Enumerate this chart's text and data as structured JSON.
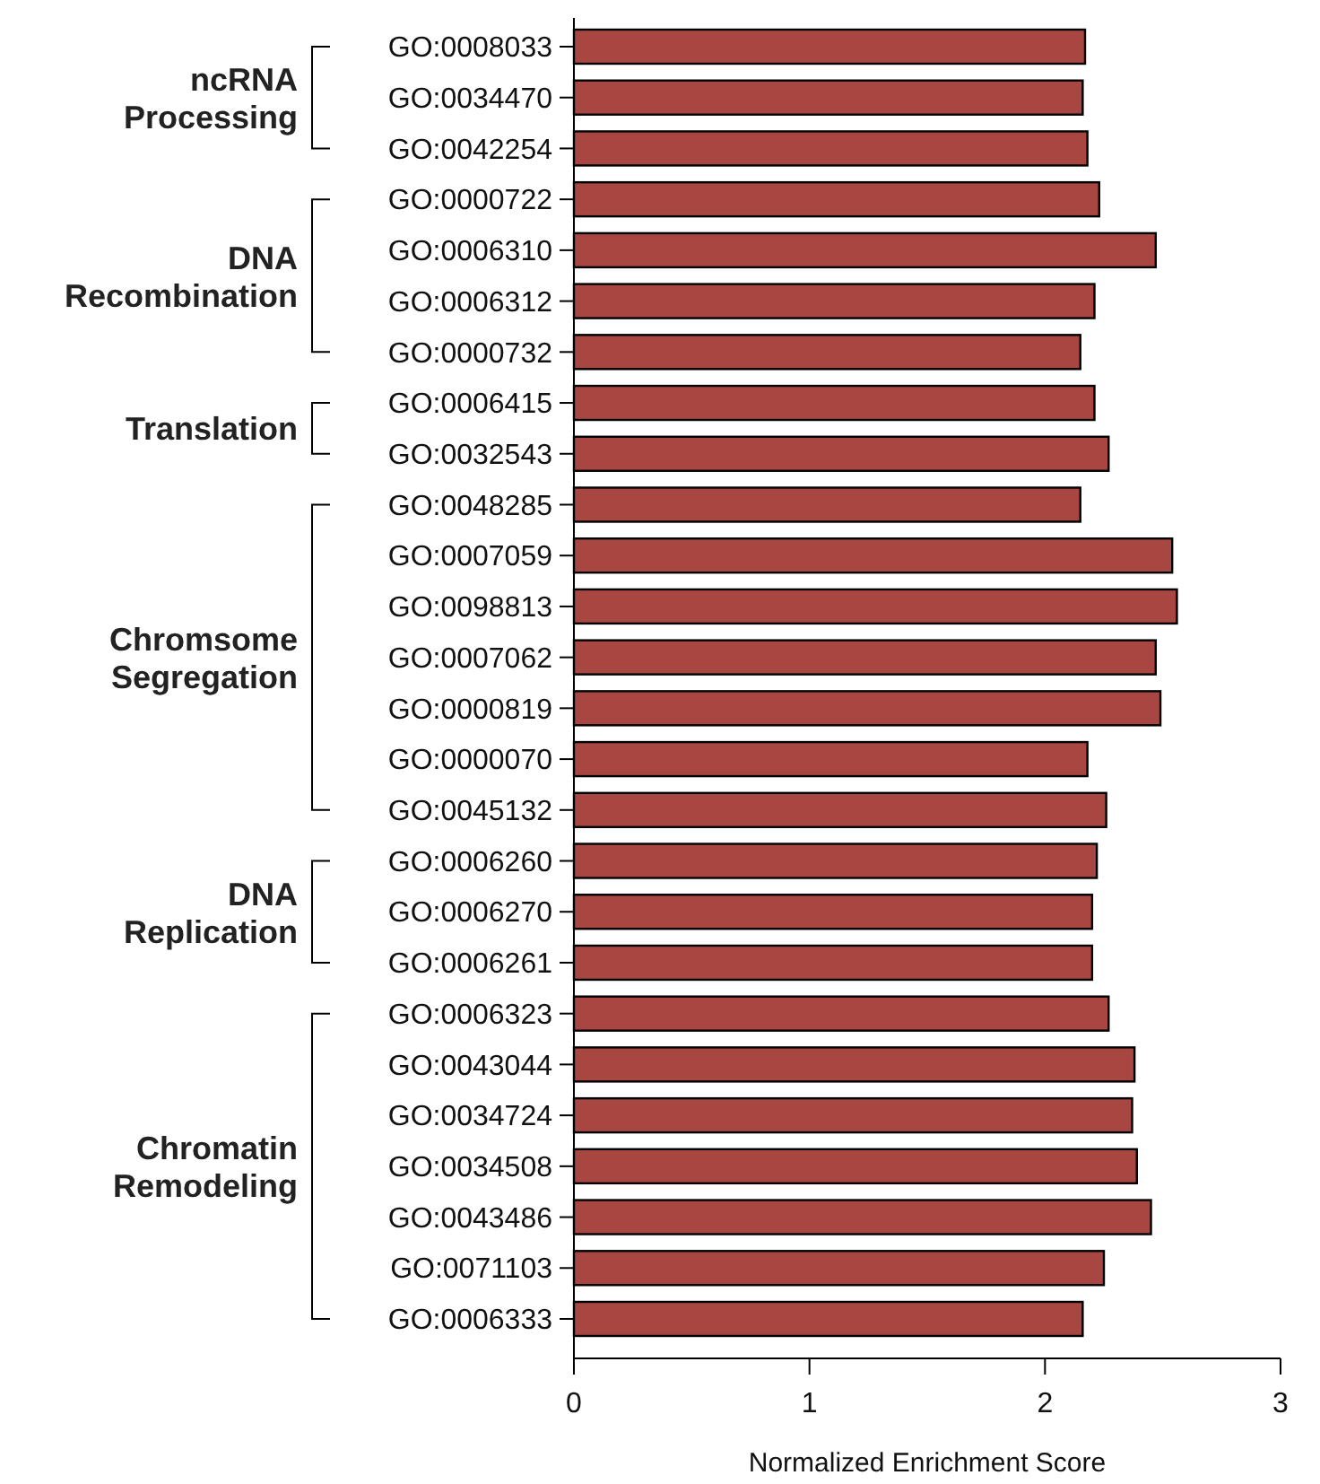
{
  "chart_data": {
    "type": "bar",
    "orientation": "horizontal",
    "xlabel": "Normalized Enrichment Score",
    "categories": [
      "GO:0008033",
      "GO:0034470",
      "GO:0042254",
      "GO:0000722",
      "GO:0006310",
      "GO:0006312",
      "GO:0000732",
      "GO:0006415",
      "GO:0032543",
      "GO:0048285",
      "GO:0007059",
      "GO:0098813",
      "GO:0007062",
      "GO:0000819",
      "GO:0000070",
      "GO:0045132",
      "GO:0006260",
      "GO:0006270",
      "GO:0006261",
      "GO:0006323",
      "GO:0043044",
      "GO:0034724",
      "GO:0034508",
      "GO:0043486",
      "GO:0071103",
      "GO:0006333"
    ],
    "values": [
      2.17,
      2.16,
      2.18,
      2.23,
      2.47,
      2.21,
      2.15,
      2.21,
      2.27,
      2.15,
      2.54,
      2.56,
      2.47,
      2.49,
      2.18,
      2.26,
      2.22,
      2.2,
      2.2,
      2.27,
      2.38,
      2.37,
      2.39,
      2.45,
      2.25,
      2.16
    ],
    "color": "#a84642",
    "xlim": [
      0,
      3
    ],
    "xticks": [
      0,
      1,
      2,
      3
    ],
    "grid": false,
    "annotations": [
      "ncRNA\nProcessing",
      "DNA\nRecombination",
      "Translation",
      "Chromsome\nSegregation",
      "DNA\nReplication",
      "Chromatin\nRemodeling"
    ]
  }
}
